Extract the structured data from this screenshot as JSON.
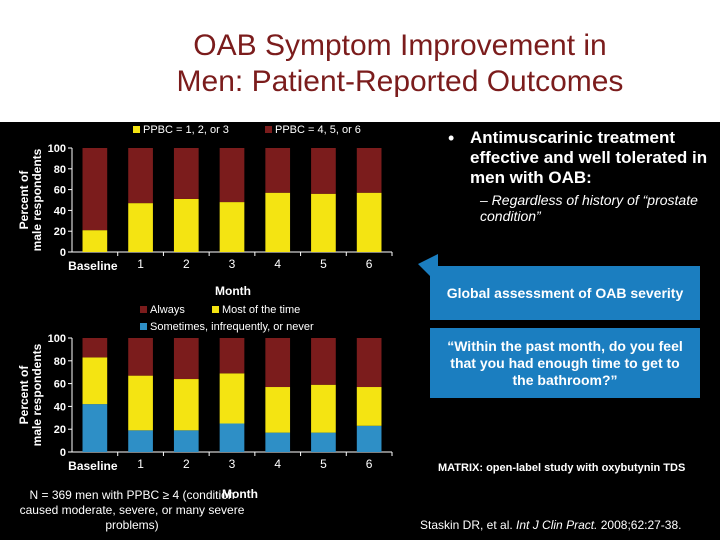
{
  "title": {
    "line1": "OAB Symptom Improvement in",
    "line2": "Men: Patient-Reported Outcomes"
  },
  "bullets": {
    "main": "Antimuscarinic treatment effective and well tolerated in men with OAB:",
    "sub": "– Regardless of history of “prostate condition”",
    "dot": "•"
  },
  "callouts": {
    "global_assessment": "Global assessment of OAB severity",
    "question": "“Within the past month, do you feel that you had enough time to get to the bathroom?”"
  },
  "matrix_note": "MATRIX: open-label study with oxybutynin TDS",
  "footnote": "N = 369 men with PPBC ≥ 4 (condition caused moderate, severe, or many severe problems)",
  "citation": {
    "author": "Staskin DR, et al.",
    "journal": "Int J Clin Pract.",
    "details": "2008;62:27-38."
  },
  "colors": {
    "dark_red": "#7b1c1c",
    "yellow": "#f4e412",
    "blue": "#2e8fc6",
    "callout_blue": "#1b7ec0"
  },
  "chart_data": [
    {
      "type": "bar",
      "stacked": true,
      "ylabel": "Percent of male respondents",
      "xlabel": "Month",
      "categories": [
        "Baseline",
        "1",
        "2",
        "3",
        "4",
        "5",
        "6"
      ],
      "ylim": [
        0,
        100
      ],
      "yticks": [
        0,
        20,
        40,
        60,
        80,
        100
      ],
      "series": [
        {
          "name": "PPBC = 1, 2, or 3",
          "color": "#f4e412",
          "values": [
            21,
            47,
            51,
            48,
            57,
            56,
            57
          ]
        },
        {
          "name": "PPBC = 4, 5, or 6",
          "color": "#7b1c1c",
          "values": [
            79,
            53,
            49,
            52,
            43,
            44,
            43
          ]
        }
      ],
      "legend": "top"
    },
    {
      "type": "bar",
      "stacked": true,
      "ylabel": "Percent of male respondents",
      "xlabel": "Month",
      "categories": [
        "Baseline",
        "1",
        "2",
        "3",
        "4",
        "5",
        "6"
      ],
      "ylim": [
        0,
        100
      ],
      "yticks": [
        0,
        20,
        40,
        60,
        80,
        100
      ],
      "series": [
        {
          "name": "Sometimes, infrequently, or never",
          "color": "#2e8fc6",
          "values": [
            42,
            19,
            19,
            25,
            17,
            17,
            23
          ]
        },
        {
          "name": "Most of the time",
          "color": "#f4e412",
          "values": [
            41,
            48,
            45,
            44,
            40,
            42,
            34
          ]
        },
        {
          "name": "Always",
          "color": "#7b1c1c",
          "values": [
            17,
            33,
            36,
            31,
            43,
            41,
            43
          ]
        }
      ],
      "legend_order": [
        2,
        1,
        0
      ],
      "legend": "top"
    }
  ]
}
